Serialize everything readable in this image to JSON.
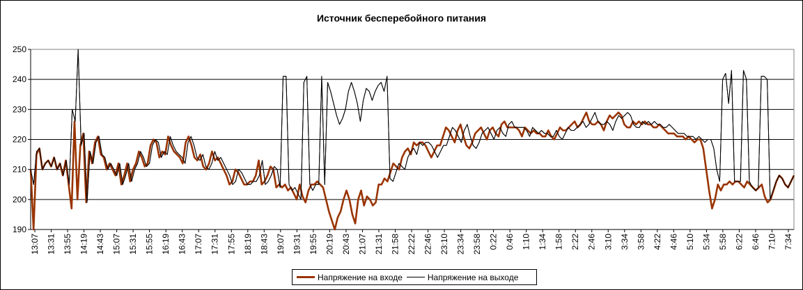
{
  "chart_data": {
    "type": "line",
    "title": "Источник бесперебойного питания",
    "xlabel": "",
    "ylabel": "",
    "ylim": [
      190,
      250
    ],
    "yticks": [
      190,
      200,
      210,
      220,
      230,
      240,
      250
    ],
    "grid": true,
    "legend_position": "bottom",
    "x_tick_labels": [
      "13:07",
      "13:31",
      "13:55",
      "14:19",
      "14:43",
      "15:07",
      "15:31",
      "15:55",
      "16:19",
      "16:43",
      "17:07",
      "17:31",
      "17:55",
      "18:19",
      "18:43",
      "19:07",
      "19:31",
      "19:55",
      "20:19",
      "20:43",
      "21:07",
      "21:31",
      "21:58",
      "22:22",
      "22:46",
      "23:10",
      "23:34",
      "23:58",
      "0:22",
      "0:46",
      "1:10",
      "1:34",
      "1:58",
      "2:22",
      "2:46",
      "3:10",
      "3:34",
      "3:58",
      "4:22",
      "4:46",
      "5:10",
      "5:34",
      "5:58",
      "6:22",
      "6:46",
      "7:10",
      "7:34"
    ],
    "series": [
      {
        "name": "Напряжение на входе",
        "color": "#993300",
        "stroke_width": 2.6,
        "values": [
          210,
          190,
          215,
          217,
          210,
          212,
          213,
          211,
          214,
          210,
          212,
          208,
          213,
          205,
          197,
          226,
          200,
          218,
          222,
          199,
          216,
          212,
          219,
          221,
          215,
          214,
          210,
          212,
          210,
          208,
          212,
          205,
          208,
          212,
          206,
          210,
          212,
          216,
          214,
          211,
          212,
          218,
          220,
          219,
          214,
          216,
          215,
          221,
          218,
          216,
          215,
          214,
          212,
          219,
          221,
          218,
          214,
          213,
          215,
          211,
          210,
          212,
          216,
          213,
          214,
          212,
          210,
          208,
          205,
          206,
          210,
          209,
          207,
          205,
          205,
          206,
          206,
          208,
          213,
          205,
          206,
          208,
          211,
          210,
          204,
          205,
          204,
          205,
          203,
          204,
          202,
          200,
          205,
          201,
          199,
          203,
          205,
          205,
          206,
          205,
          204,
          200,
          196,
          193,
          190,
          194,
          196,
          200,
          203,
          200,
          195,
          192,
          200,
          203,
          198,
          201,
          200,
          198,
          199,
          205,
          205,
          207,
          206,
          209,
          212,
          211,
          210,
          214,
          216,
          217,
          215,
          219,
          218,
          219,
          219,
          218,
          216,
          214,
          216,
          218,
          218,
          221,
          224,
          223,
          221,
          219,
          223,
          225,
          221,
          218,
          217,
          219,
          222,
          223,
          224,
          222,
          220,
          223,
          224,
          222,
          221,
          225,
          226,
          224,
          224,
          224,
          224,
          223,
          221,
          224,
          223,
          222,
          223,
          222,
          222,
          221,
          221,
          223,
          221,
          220,
          222,
          224,
          223,
          223,
          224,
          225,
          226,
          224,
          225,
          227,
          229,
          226,
          225,
          225,
          226,
          225,
          223,
          226,
          228,
          227,
          228,
          229,
          228,
          225,
          224,
          224,
          226,
          225,
          226,
          225,
          226,
          225,
          225,
          224,
          224,
          225,
          224,
          223,
          222,
          222,
          222,
          221,
          221,
          221,
          220,
          221,
          220,
          219,
          220,
          220,
          217,
          210,
          203,
          197,
          200,
          205,
          203,
          205,
          205,
          206,
          205,
          206,
          206,
          205,
          204,
          206,
          205,
          204,
          203,
          204,
          205,
          201,
          199,
          200,
          203,
          206,
          208,
          207,
          205,
          204,
          206,
          208
        ]
      },
      {
        "name": "Напряжение на выходе",
        "color": "#000000",
        "stroke_width": 1,
        "values": [
          210,
          205,
          216,
          217,
          210,
          212,
          213,
          211,
          214,
          210,
          212,
          208,
          213,
          205,
          230,
          226,
          250,
          218,
          222,
          199,
          216,
          212,
          219,
          221,
          215,
          214,
          210,
          212,
          210,
          208,
          212,
          205,
          208,
          212,
          206,
          210,
          212,
          216,
          214,
          211,
          212,
          218,
          220,
          219,
          214,
          216,
          215,
          221,
          218,
          216,
          215,
          214,
          212,
          219,
          221,
          218,
          214,
          213,
          215,
          211,
          210,
          212,
          216,
          213,
          214,
          212,
          210,
          208,
          205,
          206,
          210,
          209,
          207,
          205,
          205,
          206,
          206,
          208,
          213,
          205,
          206,
          208,
          211,
          210,
          204,
          241,
          241,
          205,
          203,
          204,
          202,
          200,
          239,
          241,
          205,
          203,
          205,
          205,
          241,
          205,
          239,
          236,
          232,
          228,
          225,
          227,
          230,
          236,
          239,
          236,
          232,
          226,
          233,
          237,
          236,
          233,
          236,
          238,
          239,
          236,
          241,
          207,
          206,
          209,
          212,
          211,
          210,
          214,
          216,
          217,
          215,
          219,
          218,
          219,
          219,
          218,
          216,
          214,
          216,
          218,
          218,
          221,
          224,
          223,
          221,
          219,
          223,
          225,
          221,
          218,
          217,
          219,
          222,
          223,
          224,
          222,
          220,
          223,
          224,
          222,
          221,
          225,
          226,
          224,
          224,
          224,
          224,
          223,
          221,
          224,
          223,
          222,
          223,
          222,
          222,
          221,
          221,
          223,
          221,
          220,
          222,
          224,
          223,
          223,
          224,
          225,
          226,
          224,
          225,
          227,
          229,
          226,
          225,
          225,
          226,
          225,
          223,
          226,
          228,
          227,
          228,
          229,
          228,
          225,
          224,
          224,
          226,
          225,
          226,
          225,
          226,
          225,
          225,
          224,
          224,
          225,
          224,
          223,
          222,
          222,
          222,
          221,
          221,
          221,
          220,
          221,
          220,
          219,
          220,
          220,
          217,
          210,
          206,
          240,
          242,
          232,
          243,
          206,
          206,
          206,
          243,
          240,
          206,
          204,
          203,
          204,
          241,
          241,
          240,
          200,
          203,
          206,
          208,
          207,
          205,
          204,
          206,
          208
        ]
      }
    ]
  }
}
